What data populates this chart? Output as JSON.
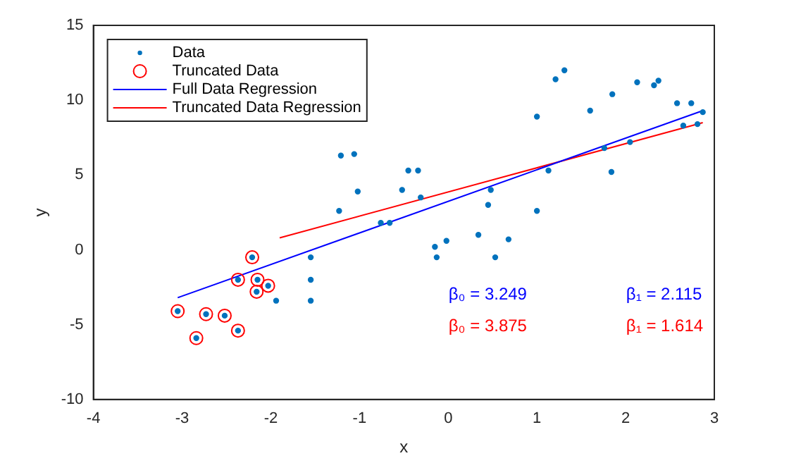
{
  "chart_data": {
    "type": "scatter",
    "xlabel": "x",
    "ylabel": "y",
    "xlim": [
      -4,
      3
    ],
    "ylim": [
      -10,
      15
    ],
    "xticks": [
      -4,
      -3,
      -2,
      -1,
      0,
      1,
      2,
      3
    ],
    "yticks": [
      -10,
      -5,
      0,
      5,
      10,
      15
    ],
    "grid": false,
    "legend": "top left",
    "series": [
      {
        "name": "Data",
        "marker": "circle",
        "color": "#0072bd",
        "x": [
          -3.05,
          -2.84,
          -2.73,
          -2.52,
          -2.37,
          -2.37,
          -2.21,
          -2.15,
          -2.16,
          -2.03,
          -1.94,
          -1.55,
          -1.55,
          -1.55,
          -1.21,
          -1.06,
          -1.02,
          -1.23,
          -0.76,
          -0.66,
          -0.45,
          -0.34,
          -0.52,
          -0.31,
          -0.15,
          -0.13,
          -0.02,
          0.34,
          0.45,
          0.48,
          0.53,
          0.68,
          1.0,
          1.0,
          1.13,
          1.21,
          1.31,
          1.6,
          1.76,
          1.84,
          1.85,
          2.05,
          2.13,
          2.32,
          2.37,
          2.58,
          2.65,
          2.74,
          2.81,
          2.87
        ],
        "values": [
          -4.1,
          -5.9,
          -4.3,
          -4.4,
          -5.4,
          -2.0,
          -0.5,
          -2.0,
          -2.8,
          -2.4,
          -3.4,
          -0.5,
          -2.0,
          -3.4,
          6.3,
          6.4,
          3.9,
          2.6,
          1.8,
          1.8,
          5.3,
          5.3,
          4.0,
          3.5,
          0.2,
          -0.5,
          0.6,
          1.0,
          3.0,
          4.0,
          -0.5,
          0.7,
          8.9,
          2.6,
          5.3,
          11.4,
          12.0,
          9.3,
          6.8,
          5.2,
          10.4,
          7.2,
          11.2,
          11.0,
          11.3,
          9.8,
          8.3,
          9.8,
          8.4,
          9.2
        ]
      },
      {
        "name": "Truncated Data",
        "marker": "circle",
        "color": "#ff0000",
        "x": [
          -3.05,
          -2.84,
          -2.73,
          -2.52,
          -2.37,
          -2.37,
          -2.21,
          -2.15,
          -2.16,
          -2.03
        ],
        "values": [
          -4.1,
          -5.9,
          -4.3,
          -4.4,
          -5.4,
          -2.0,
          -0.5,
          -2.0,
          -2.8,
          -2.4
        ]
      },
      {
        "name": "Full Data Regression",
        "type": "line",
        "marker": "none",
        "color": "#0000ff",
        "x": [
          -3.05,
          2.87
        ],
        "values": [
          -3.2,
          9.3
        ]
      },
      {
        "name": "Truncated Data Regression",
        "type": "line",
        "marker": "none",
        "color": "#ff0000",
        "x": [
          -1.9,
          2.87
        ],
        "values": [
          0.8,
          8.5
        ]
      }
    ],
    "annotations": [
      "β₀ = 3.249",
      "β₁ = 2.115",
      "β₀ = 3.875",
      "β₁ = 1.614"
    ]
  }
}
